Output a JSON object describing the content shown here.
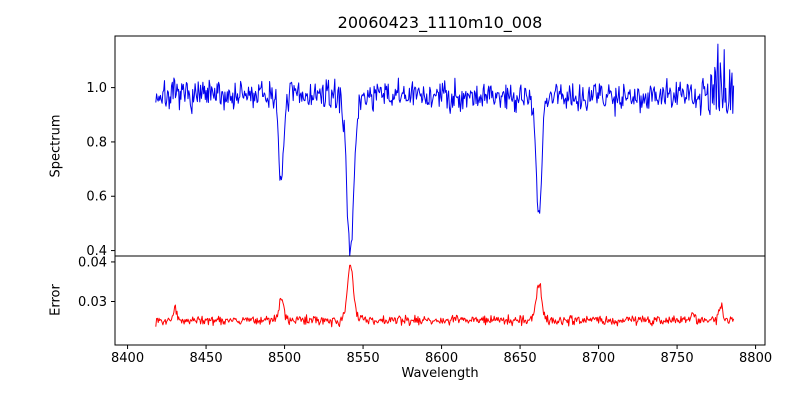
{
  "figure": {
    "background": "#ffffff",
    "axis_color": "#000000"
  },
  "chart_data": {
    "type": "line",
    "title": "20060423_1110m10_008",
    "xlabel": "Wavelength",
    "grid": false,
    "legend_position": "none",
    "xlim": [
      8392,
      8806
    ],
    "x_range": [
      8418,
      8786
    ],
    "x_ticks": [
      8400,
      8450,
      8500,
      8550,
      8600,
      8650,
      8700,
      8750,
      8800
    ],
    "x_tick_labels": [
      "8400",
      "8450",
      "8500",
      "8550",
      "8600",
      "8650",
      "8700",
      "8750",
      "8800"
    ],
    "sampling_step": 0.5,
    "random_seed": 7,
    "panels": [
      {
        "name": "spectrum",
        "ylabel": "Spectrum",
        "color": "#0000ee",
        "ylim": [
          0.38,
          1.19
        ],
        "y_ticks": [
          0.4,
          0.6,
          0.8,
          1.0
        ],
        "y_tick_labels": [
          "0.4",
          "0.6",
          "0.8",
          "1.0"
        ],
        "baseline": 0.97,
        "noise_amplitude": 0.055,
        "noise_boost": {
          "from": 8765,
          "factor": 1.7
        },
        "features": [
          {
            "center": 8498,
            "amplitude": -0.35,
            "sigma": 1.4
          },
          {
            "center": 8542,
            "amplitude": -0.55,
            "sigma": 2.4
          },
          {
            "center": 8662,
            "amplitude": -0.45,
            "sigma": 1.8
          }
        ],
        "spikes": [
          {
            "x": 8776,
            "y": 1.16
          },
          {
            "x": 8780,
            "y": 1.14
          }
        ]
      },
      {
        "name": "error",
        "ylabel": "Error",
        "color": "#ff0000",
        "ylim": [
          0.019,
          0.0415
        ],
        "y_ticks": [
          0.03,
          0.04
        ],
        "y_tick_labels": [
          "0.03",
          "0.04"
        ],
        "baseline": 0.0253,
        "noise_amplitude": 0.0012,
        "features": [
          {
            "center": 8430,
            "amplitude": 0.003,
            "sigma": 1.2
          },
          {
            "center": 8498,
            "amplitude": 0.0052,
            "sigma": 1.5
          },
          {
            "center": 8542,
            "amplitude": 0.014,
            "sigma": 1.9
          },
          {
            "center": 8662,
            "amplitude": 0.009,
            "sigma": 1.8
          },
          {
            "center": 8760,
            "amplitude": 0.0022,
            "sigma": 1.0
          },
          {
            "center": 8778,
            "amplitude": 0.0035,
            "sigma": 1.2
          }
        ],
        "spikes": []
      }
    ]
  }
}
